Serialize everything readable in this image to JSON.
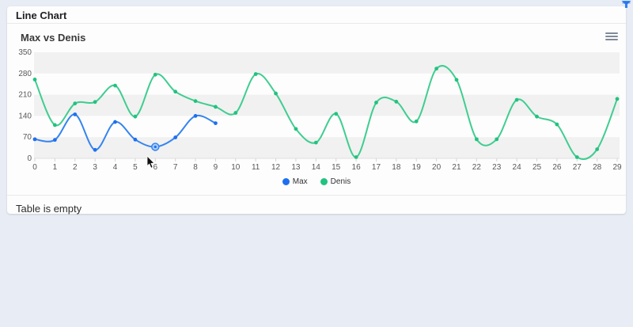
{
  "header": {
    "title": "Line Chart"
  },
  "chart": {
    "title": "Max vs Denis",
    "menu_icon": "hamburger-icon"
  },
  "chart_data": {
    "type": "line",
    "title": "Max vs Denis",
    "x": [
      0,
      1,
      2,
      3,
      4,
      5,
      6,
      7,
      8,
      9,
      10,
      11,
      12,
      13,
      14,
      15,
      16,
      17,
      18,
      19,
      20,
      21,
      22,
      23,
      24,
      25,
      26,
      27,
      28,
      29
    ],
    "series": [
      {
        "name": "Max",
        "line_color": "#3584f0",
        "dot_color": "#1d6ff0",
        "values": [
          63,
          61,
          145,
          28,
          120,
          62,
          38,
          69,
          140,
          116
        ]
      },
      {
        "name": "Denis",
        "line_color": "#3fcd90",
        "dot_color": "#22c27f",
        "values": [
          260,
          110,
          181,
          186,
          240,
          138,
          276,
          220,
          189,
          170,
          150,
          278,
          214,
          97,
          52,
          147,
          4,
          184,
          187,
          122,
          296,
          259,
          63,
          63,
          193,
          138,
          112,
          4,
          30,
          196
        ]
      }
    ],
    "ylim": [
      0,
      350
    ],
    "yticks": [
      0,
      70,
      140,
      210,
      280,
      350
    ],
    "band_fill": "#f1f1f1",
    "grid": "banded",
    "legend_position": "bottom",
    "highlighted_point": {
      "series": "Max",
      "index": 6
    }
  },
  "table": {
    "empty_text": "Table is empty"
  },
  "colors": {
    "page_bg": "#e8ecf4",
    "card_bg": "#fdfdfd",
    "accent_blue": "#2b7ff2",
    "accent_green": "#3fcd90",
    "filter_icon": "#2f80f2"
  }
}
